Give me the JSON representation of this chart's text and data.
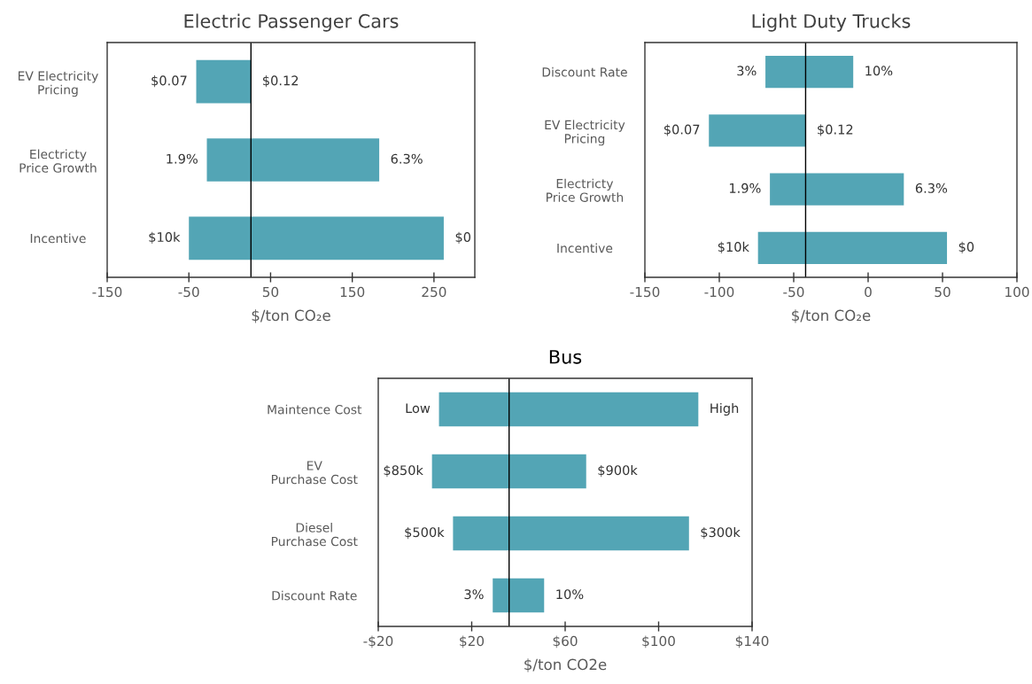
{
  "chart_data": [
    {
      "type": "bar",
      "orientation": "horizontal",
      "title": "Electric Passenger Cars",
      "xlabel": "$/ton CO₂e",
      "categories": [
        "EV Electricity\nPricing",
        "Electricty\nPrice Growth",
        "Incentive"
      ],
      "series": [
        {
          "color": "#53a5b5",
          "base": [
            -41,
            -28,
            -50
          ],
          "values": [
            67,
            211,
            312
          ]
        }
      ],
      "xlim": [
        -150,
        300
      ],
      "xticks": [
        -150,
        -50,
        50,
        150,
        250
      ],
      "ref_lines": [
        {
          "axis": "x",
          "value": 26,
          "color": "#000000"
        }
      ],
      "annotations": [
        {
          "text": "$0.07",
          "x": -41,
          "y": "EV Electricity\nPricing"
        },
        {
          "text": "$0.12",
          "x": 26,
          "y": "EV Electricity\nPricing"
        },
        {
          "text": "1.9%",
          "x": -28,
          "y": "Electricty\nPrice Growth"
        },
        {
          "text": "6.3%",
          "x": 183,
          "y": "Electricty\nPrice Growth"
        },
        {
          "text": "$10k",
          "x": -50,
          "y": "Incentive"
        },
        {
          "text": "$0",
          "x": 262,
          "y": "Incentive"
        }
      ]
    },
    {
      "type": "bar",
      "orientation": "horizontal",
      "title": "Light Duty Trucks",
      "xlabel": "$/ton CO₂e",
      "categories": [
        "Discount Rate",
        "EV Electricity\nPricing",
        "Electricty\nPrice Growth",
        "Incentive"
      ],
      "series": [
        {
          "color": "#53a5b5",
          "base": [
            -69,
            -107,
            -66,
            -74
          ],
          "values": [
            59,
            65,
            90,
            127
          ]
        }
      ],
      "xlim": [
        -150,
        100
      ],
      "xticks": [
        -150,
        -100,
        -50,
        0,
        50,
        100
      ],
      "ref_lines": [
        {
          "axis": "x",
          "value": -42,
          "color": "#000000"
        }
      ],
      "annotations": [
        {
          "text": "3%",
          "x": -69,
          "y": "Discount Rate"
        },
        {
          "text": "10%",
          "x": -10,
          "y": "Discount Rate"
        },
        {
          "text": "$0.07",
          "x": -107,
          "y": "EV Electricity\nPricing"
        },
        {
          "text": "$0.12",
          "x": -42,
          "y": "EV Electricity\nPricing"
        },
        {
          "text": "1.9%",
          "x": -66,
          "y": "Electricty\nPrice Growth"
        },
        {
          "text": "6.3%",
          "x": 24,
          "y": "Electricty\nPrice Growth"
        },
        {
          "text": "$10k",
          "x": -74,
          "y": "Incentive"
        },
        {
          "text": "$0",
          "x": 53,
          "y": "Incentive"
        }
      ]
    },
    {
      "type": "bar",
      "orientation": "horizontal",
      "title": "Bus",
      "xlabel": "$/ton CO2e",
      "categories": [
        "Maintence Cost",
        "EV\nPurchase Cost",
        "Diesel\nPurchase Cost",
        "Discount Rate"
      ],
      "series": [
        {
          "color": "#53a5b5",
          "base": [
            6,
            3,
            12,
            29
          ],
          "values": [
            111,
            66,
            101,
            22
          ]
        }
      ],
      "xlim": [
        -20,
        140
      ],
      "xticks": [
        {
          "value": -20,
          "label": "-$20"
        },
        {
          "value": 20,
          "label": "$20"
        },
        {
          "value": 60,
          "label": "$60"
        },
        {
          "value": 100,
          "label": "$100"
        },
        {
          "value": 140,
          "label": "$140"
        }
      ],
      "ref_lines": [
        {
          "axis": "x",
          "value": 36,
          "color": "#000000"
        }
      ],
      "annotations": [
        {
          "text": "Low",
          "x": 6,
          "y": "Maintence Cost"
        },
        {
          "text": "High",
          "x": 117,
          "y": "Maintence Cost"
        },
        {
          "text": "$850k",
          "x": 3,
          "y": "EV\nPurchase Cost"
        },
        {
          "text": "$900k",
          "x": 69,
          "y": "EV\nPurchase Cost"
        },
        {
          "text": "$500k",
          "x": 12,
          "y": "Diesel\nPurchase Cost"
        },
        {
          "text": "$300k",
          "x": 113,
          "y": "Diesel\nPurchase Cost"
        },
        {
          "text": "3%",
          "x": 29,
          "y": "Discount Rate"
        },
        {
          "text": "10%",
          "x": 51,
          "y": "Discount Rate"
        }
      ]
    }
  ]
}
